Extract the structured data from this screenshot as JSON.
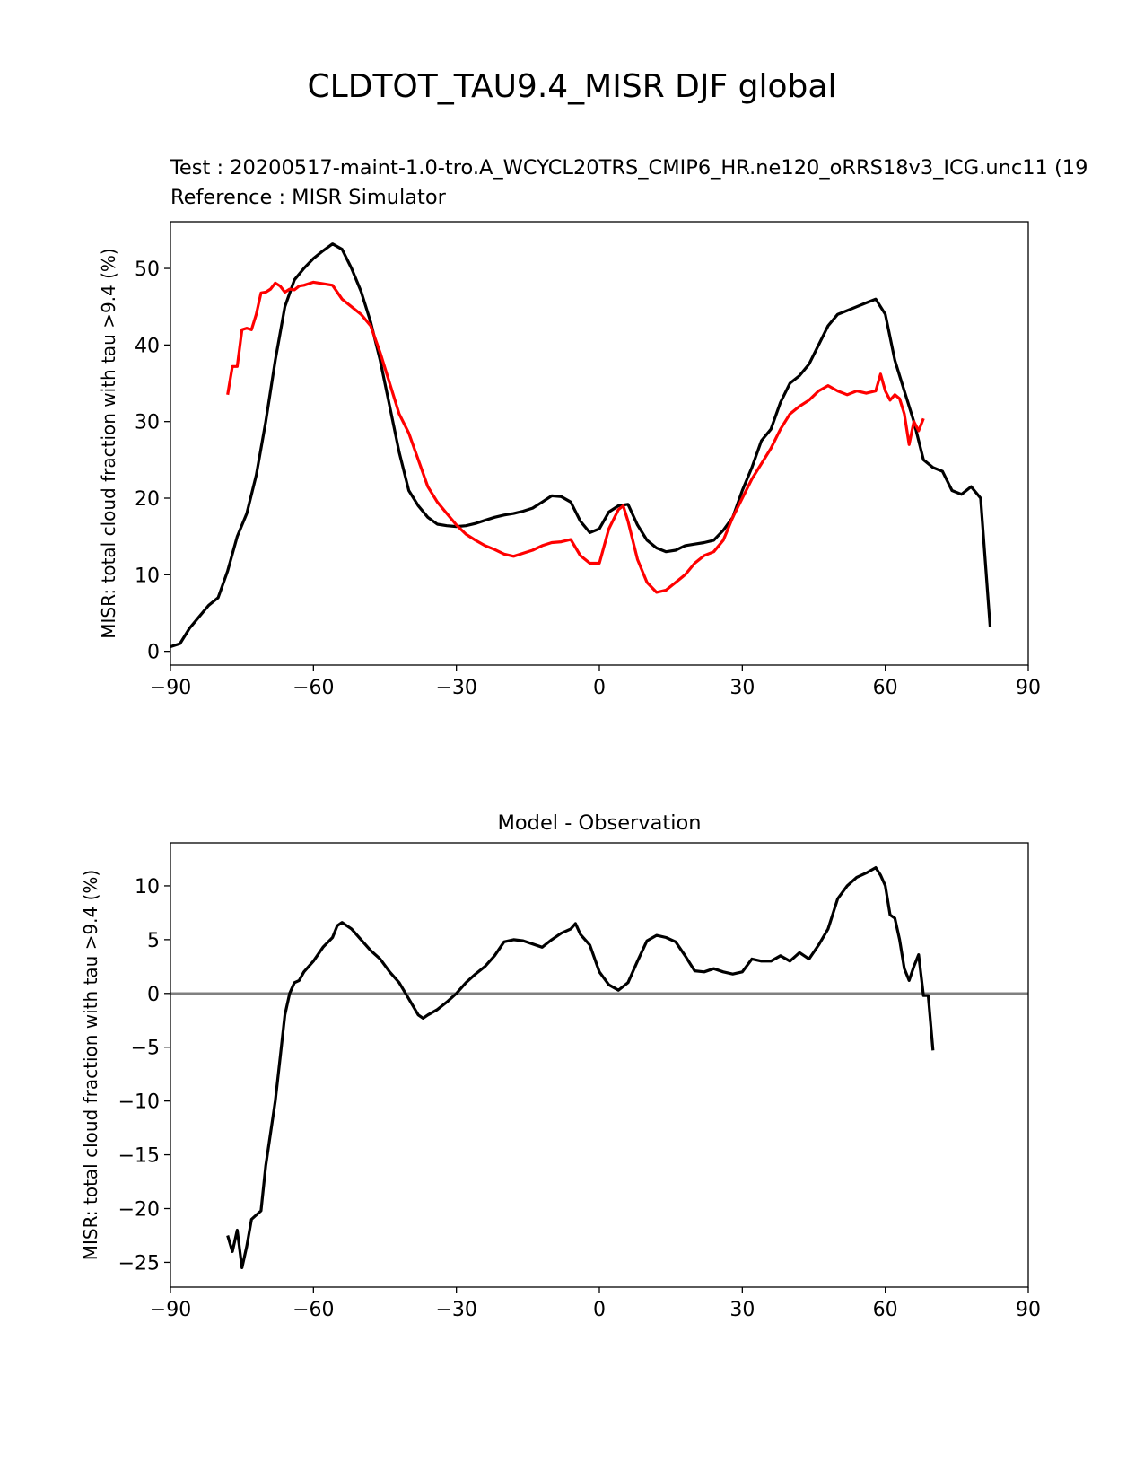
{
  "figure": {
    "title": "CLDTOT_TAU9.4_MISR DJF global",
    "colors": {
      "test": "#000000",
      "reference": "#ff0000",
      "zero_line": "#808080"
    }
  },
  "chart_data": [
    {
      "type": "line",
      "test_label": "Test : 20200517-maint-1.0-tro.A_WCYCL20TRS_CMIP6_HR.ne120_oRRS18v3_ICG.unc11 (19",
      "reference_label": "Reference : MISR Simulator",
      "title": "",
      "xlabel": "",
      "ylabel": "MISR: total cloud fraction with tau >9.4 (%)",
      "xlim": [
        -90,
        90
      ],
      "ylim": [
        -1.8,
        56.1
      ],
      "xticks": [
        -90,
        -60,
        -30,
        0,
        30,
        60,
        90
      ],
      "yticks": [
        0,
        10,
        20,
        30,
        40,
        50
      ],
      "series": [
        {
          "name": "Test",
          "color": "#000000",
          "points": [
            [
              -90,
              0.6
            ],
            [
              -88,
              1
            ],
            [
              -86,
              3
            ],
            [
              -84,
              4.5
            ],
            [
              -82,
              6
            ],
            [
              -80,
              7
            ],
            [
              -78,
              10.5
            ],
            [
              -76,
              15
            ],
            [
              -74,
              18
            ],
            [
              -72,
              23
            ],
            [
              -70,
              30
            ],
            [
              -68,
              38
            ],
            [
              -66,
              45
            ],
            [
              -64,
              48.5
            ],
            [
              -62,
              50
            ],
            [
              -60,
              51.3
            ],
            [
              -58,
              52.3
            ],
            [
              -56,
              53.2
            ],
            [
              -54,
              52.5
            ],
            [
              -52,
              50
            ],
            [
              -50,
              47
            ],
            [
              -48,
              43
            ],
            [
              -46,
              38
            ],
            [
              -44,
              32
            ],
            [
              -42,
              26
            ],
            [
              -40,
              21
            ],
            [
              -38,
              19
            ],
            [
              -36,
              17.5
            ],
            [
              -34,
              16.6
            ],
            [
              -32,
              16.4
            ],
            [
              -30,
              16.3
            ],
            [
              -28,
              16.4
            ],
            [
              -26,
              16.7
            ],
            [
              -24,
              17.1
            ],
            [
              -22,
              17.5
            ],
            [
              -20,
              17.8
            ],
            [
              -18,
              18
            ],
            [
              -16,
              18.3
            ],
            [
              -14,
              18.7
            ],
            [
              -12,
              19.5
            ],
            [
              -10,
              20.3
            ],
            [
              -8,
              20.2
            ],
            [
              -6,
              19.5
            ],
            [
              -4,
              17
            ],
            [
              -2,
              15.5
            ],
            [
              0,
              16
            ],
            [
              2,
              18.2
            ],
            [
              4,
              19
            ],
            [
              6,
              19.2
            ],
            [
              8,
              16.5
            ],
            [
              10,
              14.5
            ],
            [
              12,
              13.5
            ],
            [
              14,
              13
            ],
            [
              16,
              13.2
            ],
            [
              18,
              13.8
            ],
            [
              20,
              14
            ],
            [
              22,
              14.2
            ],
            [
              24,
              14.5
            ],
            [
              26,
              15.8
            ],
            [
              28,
              17.5
            ],
            [
              30,
              21
            ],
            [
              32,
              24
            ],
            [
              34,
              27.5
            ],
            [
              36,
              29
            ],
            [
              38,
              32.5
            ],
            [
              40,
              35
            ],
            [
              42,
              36
            ],
            [
              44,
              37.5
            ],
            [
              46,
              40
            ],
            [
              48,
              42.5
            ],
            [
              50,
              44
            ],
            [
              52,
              44.5
            ],
            [
              54,
              45
            ],
            [
              56,
              45.5
            ],
            [
              58,
              46
            ],
            [
              60,
              44
            ],
            [
              62,
              38
            ],
            [
              64,
              34
            ],
            [
              66,
              30
            ],
            [
              68,
              25
            ],
            [
              70,
              24
            ],
            [
              72,
              23.5
            ],
            [
              74,
              21
            ],
            [
              76,
              20.5
            ],
            [
              78,
              21.5
            ],
            [
              80,
              20
            ],
            [
              82,
              3.2
            ]
          ]
        },
        {
          "name": "Reference",
          "color": "#ff0000",
          "points": [
            [
              -78,
              33.5
            ],
            [
              -77,
              37.2
            ],
            [
              -76,
              37.2
            ],
            [
              -75,
              42
            ],
            [
              -74,
              42.2
            ],
            [
              -73,
              42
            ],
            [
              -72,
              44
            ],
            [
              -71,
              46.8
            ],
            [
              -70,
              46.9
            ],
            [
              -69,
              47.3
            ],
            [
              -68,
              48.1
            ],
            [
              -67,
              47.7
            ],
            [
              -66,
              46.9
            ],
            [
              -65,
              47.3
            ],
            [
              -64,
              47.2
            ],
            [
              -63,
              47.7
            ],
            [
              -62,
              47.8
            ],
            [
              -60,
              48.2
            ],
            [
              -58,
              48
            ],
            [
              -56,
              47.8
            ],
            [
              -54,
              46
            ],
            [
              -52,
              45
            ],
            [
              -50,
              44
            ],
            [
              -48,
              42.5
            ],
            [
              -46,
              39
            ],
            [
              -44,
              35
            ],
            [
              -42,
              31
            ],
            [
              -40,
              28.5
            ],
            [
              -38,
              25
            ],
            [
              -36,
              21.5
            ],
            [
              -34,
              19.5
            ],
            [
              -32,
              18
            ],
            [
              -30,
              16.5
            ],
            [
              -28,
              15.3
            ],
            [
              -26,
              14.5
            ],
            [
              -24,
              13.8
            ],
            [
              -22,
              13.3
            ],
            [
              -20,
              12.7
            ],
            [
              -18,
              12.4
            ],
            [
              -16,
              12.8
            ],
            [
              -14,
              13.2
            ],
            [
              -12,
              13.8
            ],
            [
              -10,
              14.2
            ],
            [
              -8,
              14.3
            ],
            [
              -6,
              14.6
            ],
            [
              -4,
              12.5
            ],
            [
              -2,
              11.5
            ],
            [
              0,
              11.5
            ],
            [
              2,
              16
            ],
            [
              4,
              18.5
            ],
            [
              5,
              19
            ],
            [
              6,
              17
            ],
            [
              8,
              12
            ],
            [
              10,
              9
            ],
            [
              12,
              7.7
            ],
            [
              14,
              8
            ],
            [
              16,
              9
            ],
            [
              18,
              10
            ],
            [
              20,
              11.5
            ],
            [
              22,
              12.5
            ],
            [
              24,
              13
            ],
            [
              26,
              14.5
            ],
            [
              28,
              17.5
            ],
            [
              30,
              20
            ],
            [
              32,
              22.5
            ],
            [
              34,
              24.5
            ],
            [
              36,
              26.5
            ],
            [
              38,
              29
            ],
            [
              40,
              31
            ],
            [
              42,
              32
            ],
            [
              44,
              32.8
            ],
            [
              46,
              34
            ],
            [
              48,
              34.7
            ],
            [
              50,
              34
            ],
            [
              52,
              33.5
            ],
            [
              54,
              34
            ],
            [
              56,
              33.7
            ],
            [
              58,
              34
            ],
            [
              59,
              36.2
            ],
            [
              60,
              34
            ],
            [
              61,
              32.8
            ],
            [
              62,
              33.5
            ],
            [
              63,
              33
            ],
            [
              64,
              31
            ],
            [
              65,
              27
            ],
            [
              66,
              30
            ],
            [
              67,
              28.8
            ],
            [
              68,
              30.4
            ]
          ]
        }
      ]
    },
    {
      "type": "line",
      "title": "Model - Observation",
      "xlabel": "",
      "ylabel": "MISR: total cloud fraction with tau >9.4 (%)",
      "xlim": [
        -90,
        90
      ],
      "ylim": [
        -27.3,
        14
      ],
      "xticks": [
        -90,
        -60,
        -30,
        0,
        30,
        60,
        90
      ],
      "yticks": [
        -25,
        -20,
        -15,
        -10,
        -5,
        0,
        5,
        10
      ],
      "zero_line": 0,
      "series": [
        {
          "name": "Model - Observation",
          "color": "#000000",
          "points": [
            [
              -78,
              -22.5
            ],
            [
              -77,
              -24
            ],
            [
              -76,
              -22
            ],
            [
              -75,
              -25.5
            ],
            [
              -74,
              -23.5
            ],
            [
              -73,
              -21
            ],
            [
              -71,
              -20.2
            ],
            [
              -70,
              -16
            ],
            [
              -69,
              -13
            ],
            [
              -68,
              -10
            ],
            [
              -67,
              -6
            ],
            [
              -66,
              -2
            ],
            [
              -65,
              0
            ],
            [
              -64,
              1
            ],
            [
              -63,
              1.2
            ],
            [
              -62,
              2
            ],
            [
              -60,
              3
            ],
            [
              -58,
              4.3
            ],
            [
              -56,
              5.2
            ],
            [
              -55,
              6.3
            ],
            [
              -54,
              6.6
            ],
            [
              -52,
              6
            ],
            [
              -50,
              5
            ],
            [
              -48,
              4
            ],
            [
              -46,
              3.2
            ],
            [
              -44,
              2
            ],
            [
              -42,
              1
            ],
            [
              -40,
              -0.5
            ],
            [
              -38,
              -2
            ],
            [
              -37,
              -2.3
            ],
            [
              -36,
              -2
            ],
            [
              -34,
              -1.5
            ],
            [
              -32,
              -0.8
            ],
            [
              -30,
              0
            ],
            [
              -28,
              1
            ],
            [
              -26,
              1.8
            ],
            [
              -24,
              2.5
            ],
            [
              -22,
              3.5
            ],
            [
              -20,
              4.8
            ],
            [
              -18,
              5
            ],
            [
              -16,
              4.9
            ],
            [
              -14,
              4.6
            ],
            [
              -12,
              4.3
            ],
            [
              -10,
              5
            ],
            [
              -8,
              5.6
            ],
            [
              -6,
              6
            ],
            [
              -5,
              6.5
            ],
            [
              -4,
              5.5
            ],
            [
              -2,
              4.5
            ],
            [
              0,
              2
            ],
            [
              2,
              0.8
            ],
            [
              4,
              0.3
            ],
            [
              6,
              1
            ],
            [
              8,
              3
            ],
            [
              10,
              4.9
            ],
            [
              12,
              5.4
            ],
            [
              14,
              5.2
            ],
            [
              16,
              4.8
            ],
            [
              18,
              3.5
            ],
            [
              20,
              2.1
            ],
            [
              22,
              2
            ],
            [
              24,
              2.3
            ],
            [
              26,
              2
            ],
            [
              28,
              1.8
            ],
            [
              30,
              2
            ],
            [
              32,
              3.2
            ],
            [
              34,
              3
            ],
            [
              36,
              3
            ],
            [
              38,
              3.5
            ],
            [
              40,
              3
            ],
            [
              42,
              3.8
            ],
            [
              44,
              3.2
            ],
            [
              46,
              4.5
            ],
            [
              48,
              6
            ],
            [
              50,
              8.8
            ],
            [
              52,
              10
            ],
            [
              54,
              10.8
            ],
            [
              56,
              11.2
            ],
            [
              58,
              11.7
            ],
            [
              59,
              11
            ],
            [
              60,
              10
            ],
            [
              61,
              7.3
            ],
            [
              62,
              7
            ],
            [
              63,
              5
            ],
            [
              64,
              2.3
            ],
            [
              65,
              1.2
            ],
            [
              66,
              2.5
            ],
            [
              67,
              3.6
            ],
            [
              68,
              -0.2
            ],
            [
              69,
              -0.2
            ],
            [
              70,
              -5.3
            ]
          ]
        }
      ]
    }
  ]
}
